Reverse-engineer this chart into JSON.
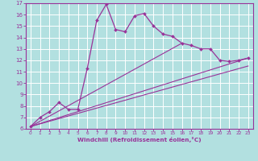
{
  "xlabel": "Windchill (Refroidissement éolien,°C)",
  "bg_color": "#b2e0e0",
  "line_color": "#993399",
  "grid_color": "#ffffff",
  "xlim": [
    -0.5,
    23.5
  ],
  "ylim": [
    6,
    17
  ],
  "xticks": [
    0,
    1,
    2,
    3,
    4,
    5,
    6,
    7,
    8,
    9,
    10,
    11,
    12,
    13,
    14,
    15,
    16,
    17,
    18,
    19,
    20,
    21,
    22,
    23
  ],
  "yticks": [
    6,
    7,
    8,
    9,
    10,
    11,
    12,
    13,
    14,
    15,
    16,
    17
  ],
  "curve1_x": [
    0,
    1,
    2,
    3,
    4,
    5,
    6,
    7,
    8,
    9,
    10,
    11,
    12,
    13,
    14,
    15,
    16,
    17,
    18,
    19,
    20,
    21,
    22,
    23
  ],
  "curve1_y": [
    6.2,
    7.0,
    7.5,
    8.3,
    7.7,
    7.7,
    11.3,
    15.5,
    16.9,
    14.7,
    14.5,
    15.9,
    16.1,
    15.0,
    14.3,
    14.1,
    13.5,
    13.3,
    13.0,
    13.0,
    12.0,
    11.9,
    12.0,
    12.2
  ],
  "line1_x": [
    0,
    23
  ],
  "line1_y": [
    6.2,
    12.2
  ],
  "line2_x": [
    0,
    16
  ],
  "line2_y": [
    6.2,
    13.5
  ],
  "line3_x": [
    0,
    23
  ],
  "line3_y": [
    6.2,
    11.5
  ]
}
